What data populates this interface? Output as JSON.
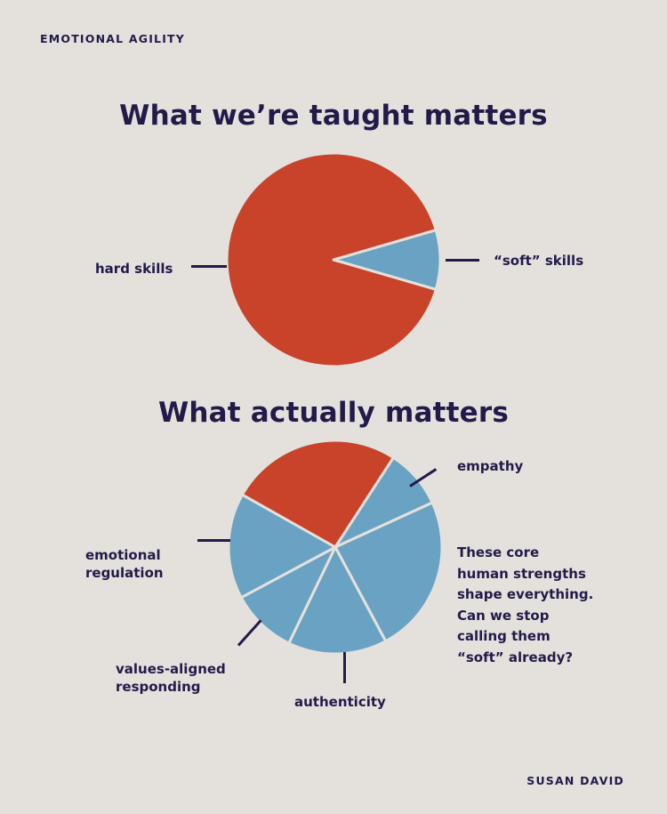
{
  "header": {
    "eyebrow": "EMOTIONAL AGILITY"
  },
  "footer": {
    "credit": "SUSAN DAVID"
  },
  "colors": {
    "background": "#e4e1dc",
    "red": "#c9432a",
    "blue": "#6aa2c3",
    "ink": "#231a4a"
  },
  "chart_data": [
    {
      "type": "pie",
      "title": "What we’re taught matters",
      "slices": [
        {
          "label": "hard skills",
          "value": 91,
          "color": "#c9432a"
        },
        {
          "label": "“soft” skills",
          "value": 9,
          "color": "#6aa2c3"
        }
      ]
    },
    {
      "type": "pie",
      "title": "What actually matters",
      "slices": [
        {
          "label": "empathy",
          "value": 9,
          "color": "#6aa2c3"
        },
        {
          "label": "",
          "value": 24,
          "color": "#6aa2c3"
        },
        {
          "label": "authenticity",
          "value": 15,
          "color": "#6aa2c3"
        },
        {
          "label": "values-aligned responding",
          "value": 10,
          "color": "#6aa2c3"
        },
        {
          "label": "emotional regulation",
          "value": 16,
          "color": "#6aa2c3"
        },
        {
          "label": "",
          "value": 26,
          "color": "#c9432a"
        }
      ],
      "annotation": [
        "These core",
        "human strengths",
        "shape everything.",
        "Can we stop",
        "calling them",
        "“soft” already?"
      ]
    }
  ]
}
